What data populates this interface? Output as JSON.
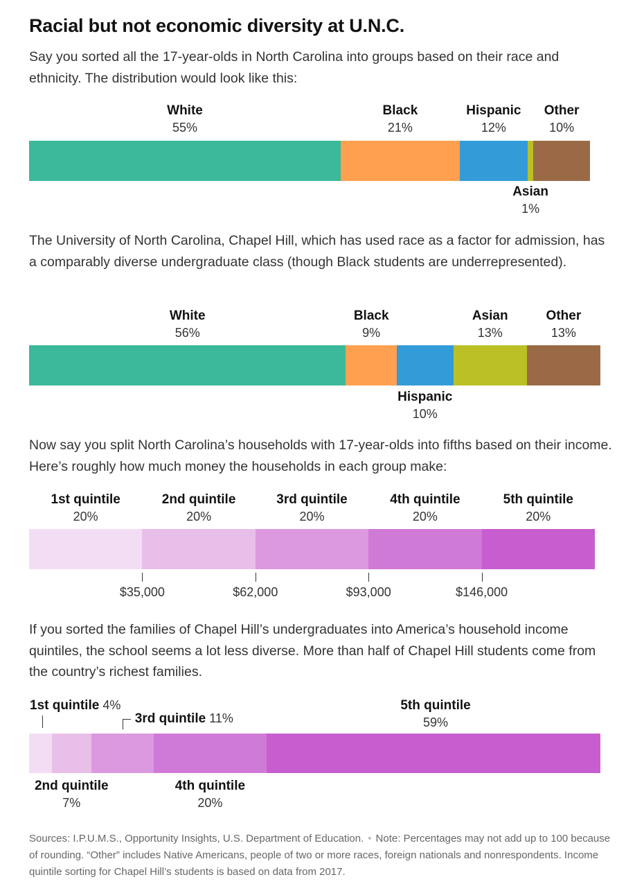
{
  "title": "Racial but not economic diversity at U.N.C.",
  "paragraphs": {
    "p1": "Say you sorted all the 17-year-olds in North Carolina into groups based on their race and ethnicity. The distribution would look like this:",
    "p2": "The University of North Carolina, Chapel Hill, which has used race as a factor for admission, has a comparably diverse undergraduate class (though Black students are underrepresented).",
    "p3": "Now say you split North Carolina’s households with 17-year-olds into fifths based on their income. Here’s roughly how much money the households in each group make:",
    "p4": "If you sorted the families of Chapel Hill’s undergraduates into America’s household income quintiles, the school seems a lot less diverse. More than half of Chapel Hill students come from the country’s richest families."
  },
  "source": {
    "sources": "Sources: I.P.U.M.S., Opportunity Insights, U.S. Department of Education.",
    "separator": "•",
    "note": "Note: Percentages may not add up to 100 because of rounding. “Other” includes Native Americans, people of two or more races, foreign nationals and nonrespondents. Income quintile sorting for Chapel Hill’s students is based on data from 2017."
  },
  "colors": {
    "White": "#3bb99a",
    "Black": "#fea04f",
    "Hispanic": "#339bd8",
    "Asian": "#bac025",
    "Other": "#9a6a47",
    "q1": "#f3ddf4",
    "q2": "#e8bfe8",
    "q3": "#dc99e0",
    "q4": "#d07ad7",
    "q5": "#c75dcf"
  },
  "chart_data": [
    {
      "type": "bar",
      "subtype": "stacked-100",
      "categories": [
        "White",
        "Black",
        "Hispanic",
        "Asian",
        "Other"
      ],
      "values": [
        55,
        21,
        12,
        1,
        10
      ],
      "value_labels": [
        "55%",
        "21%",
        "12%",
        "1%",
        "10%"
      ]
    },
    {
      "type": "bar",
      "subtype": "stacked-100",
      "categories": [
        "White",
        "Black",
        "Hispanic",
        "Asian",
        "Other"
      ],
      "values": [
        56,
        9,
        10,
        13,
        13
      ],
      "value_labels": [
        "56%",
        "9%",
        "10%",
        "13%",
        "13%"
      ]
    },
    {
      "type": "bar",
      "subtype": "stacked-100",
      "categories": [
        "1st quintile",
        "2nd quintile",
        "3rd quintile",
        "4th quintile",
        "5th quintile"
      ],
      "values": [
        20,
        20,
        20,
        20,
        20
      ],
      "value_labels": [
        "20%",
        "20%",
        "20%",
        "20%",
        "20%"
      ],
      "boundaries": [
        "$35,000",
        "$62,000",
        "$93,000",
        "$146,000"
      ]
    },
    {
      "type": "bar",
      "subtype": "stacked-100",
      "categories": [
        "1st quintile",
        "2nd quintile",
        "3rd quintile",
        "4th quintile",
        "5th quintile"
      ],
      "values": [
        4,
        7,
        11,
        20,
        59
      ],
      "value_labels": [
        "4%",
        "7%",
        "11%",
        "20%",
        "59%"
      ]
    }
  ]
}
